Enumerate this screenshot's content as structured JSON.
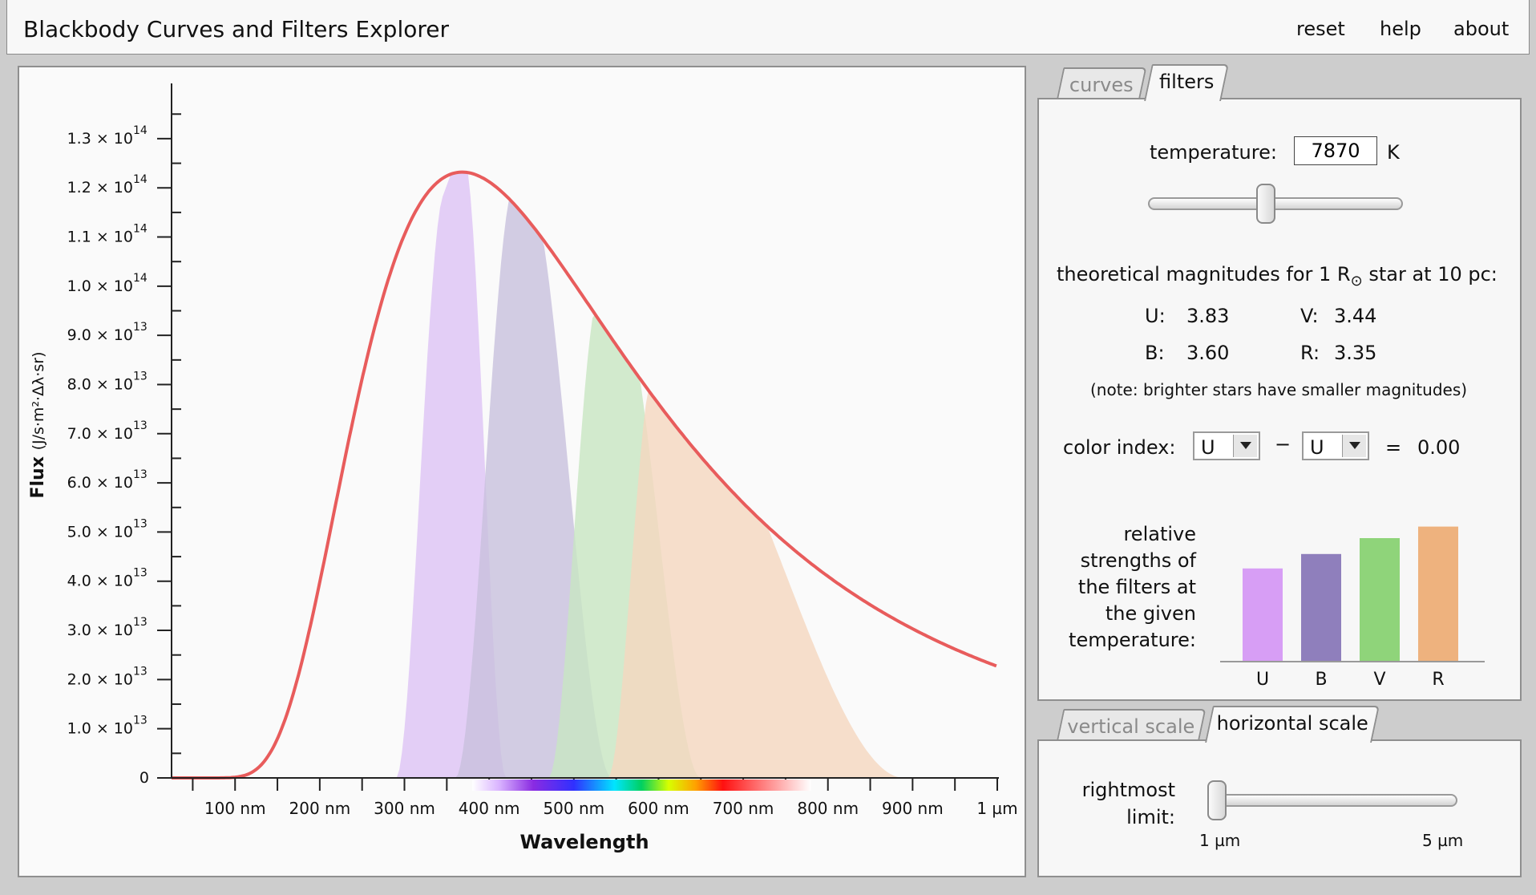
{
  "header": {
    "title": "Blackbody Curves and Filters Explorer",
    "menu": [
      "reset",
      "help",
      "about"
    ]
  },
  "chart_data": {
    "type": "area",
    "xlabel": "Wavelength",
    "ylabel": "Flux",
    "ylabel_units": "(J/s·m²·Δλ·sr)",
    "x_ticks": [
      "100 nm",
      "200 nm",
      "300 nm",
      "400 nm",
      "500 nm",
      "600 nm",
      "700 nm",
      "800 nm",
      "900 nm",
      "1 µm"
    ],
    "y_ticks": [
      {
        "mant": "0",
        "exp": ""
      },
      {
        "mant": "1.0 × 10",
        "exp": "13"
      },
      {
        "mant": "2.0 × 10",
        "exp": "13"
      },
      {
        "mant": "3.0 × 10",
        "exp": "13"
      },
      {
        "mant": "4.0 × 10",
        "exp": "13"
      },
      {
        "mant": "5.0 × 10",
        "exp": "13"
      },
      {
        "mant": "6.0 × 10",
        "exp": "13"
      },
      {
        "mant": "7.0 × 10",
        "exp": "13"
      },
      {
        "mant": "8.0 × 10",
        "exp": "13"
      },
      {
        "mant": "9.0 × 10",
        "exp": "13"
      },
      {
        "mant": "1.0 × 10",
        "exp": "14"
      },
      {
        "mant": "1.1 × 10",
        "exp": "14"
      },
      {
        "mant": "1.2 × 10",
        "exp": "14"
      },
      {
        "mant": "1.3 × 10",
        "exp": "14"
      }
    ],
    "xlim_nm": [
      25,
      1000
    ],
    "ylim": [
      0,
      137000000000000.0
    ],
    "temperature_K": 7870,
    "curve_color": "#e85c5c",
    "filters": [
      {
        "name": "U",
        "color": "#ddc3f5",
        "center_nm": 360,
        "peak": 122000000000000.0
      },
      {
        "name": "B",
        "color": "#c8c0dd",
        "center_nm": 438,
        "peak": 116000000000000.0
      },
      {
        "name": "V",
        "color": "#c8e6c2",
        "center_nm": 545,
        "peak": 94500000000000.0
      },
      {
        "name": "R",
        "color": "#f5d7bf",
        "center_nm": 641,
        "peak": 80000000000000.0
      }
    ]
  },
  "filters_tab": {
    "tabs": [
      "curves",
      "filters"
    ],
    "temperature_label": "temperature:",
    "temperature_value": "7870",
    "temperature_unit": "K",
    "temperature_slider_position": 0.46,
    "magnitudes_heading": "theoretical magnitudes for 1 R",
    "magnitudes_heading_sun": "⊙",
    "magnitudes_heading_tail": " star at 10 pc:",
    "magnitudes": [
      {
        "label": "U:",
        "value": "3.83"
      },
      {
        "label": "V:",
        "value": "3.44"
      },
      {
        "label": "B:",
        "value": "3.60"
      },
      {
        "label": "R:",
        "value": "3.35"
      }
    ],
    "note": "(note: brighter stars have smaller magnitudes)",
    "color_index_label": "color index:",
    "color_index_first": "U",
    "color_index_minus": "−",
    "color_index_second": "U",
    "color_index_equals": "=",
    "color_index_value": "0.00",
    "strength_label": [
      "relative",
      "strengths of",
      "the filters at",
      "the given",
      "temperature:"
    ],
    "strengths": [
      {
        "name": "U",
        "value": 0.64,
        "color": "#d79ef5"
      },
      {
        "name": "B",
        "value": 0.74,
        "color": "#8f7fbc"
      },
      {
        "name": "V",
        "value": 0.85,
        "color": "#8fd47a"
      },
      {
        "name": "R",
        "value": 0.93,
        "color": "#eeb27e"
      }
    ]
  },
  "scale_tab": {
    "tabs": [
      "vertical scale",
      "horizontal scale"
    ],
    "rightmost_label": [
      "rightmost",
      "limit:"
    ],
    "slider_min": "1 µm",
    "slider_max": "5 µm",
    "slider_position": 0.0
  }
}
